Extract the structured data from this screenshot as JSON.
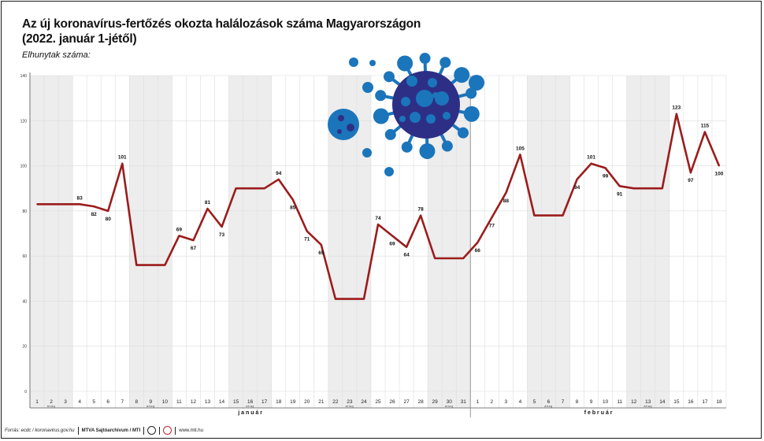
{
  "title": {
    "line1": "Az új koronavírus-fertőzés okozta halálozások száma Magyarországon",
    "line2": "(2022. január 1-jétől)"
  },
  "ylabel": "Elhunytak száma:",
  "footer": {
    "source": "Forrás: ecdc / koronavirus.gov.hu",
    "agency": "MTVA Sajtóarchívum / MTI",
    "site": "www.mti.hu"
  },
  "colors": {
    "line": "#9b1c1c",
    "band": "#ededed",
    "grid": "#dddddd",
    "virus_dark": "#2d2f86",
    "virus_light": "#1b75bb"
  },
  "chart_data": {
    "type": "line",
    "title": "Az új koronavírus-fertőzés okozta halálozások száma Magyarországon",
    "subtitle": "(2022. január 1-jétől)",
    "ylabel": "Elhunytak száma:",
    "ylim": [
      0,
      140
    ],
    "yticks": [
      0,
      20,
      40,
      60,
      80,
      100,
      120,
      140
    ],
    "grid": true,
    "months": [
      {
        "label": "j a n u á r",
        "start": 0,
        "end": 30
      },
      {
        "label": "f e b r u á r",
        "start": 31,
        "end": 48
      }
    ],
    "x": [
      "1",
      "2",
      "3",
      "4",
      "5",
      "6",
      "7",
      "8",
      "9",
      "10",
      "11",
      "12",
      "13",
      "14",
      "15",
      "16",
      "17",
      "18",
      "19",
      "20",
      "21",
      "22",
      "23",
      "24",
      "25",
      "26",
      "27",
      "28",
      "29",
      "30",
      "31",
      "1",
      "2",
      "3",
      "4",
      "5",
      "6",
      "7",
      "8",
      "9",
      "10",
      "11",
      "12",
      "13",
      "14",
      "15",
      "16",
      "17",
      "18"
    ],
    "values": [
      83,
      83,
      83,
      83,
      82,
      80,
      101,
      56,
      56,
      56,
      69,
      67,
      81,
      73,
      90,
      90,
      90,
      94,
      85,
      71,
      65,
      41,
      41,
      41,
      74,
      69,
      64,
      78,
      59,
      59,
      59,
      66,
      77,
      88,
      105,
      78,
      78,
      78,
      94,
      101,
      99,
      91,
      90,
      90,
      90,
      123,
      97,
      115,
      100
    ],
    "data_labels": [
      {
        "i": 3,
        "text": "83"
      },
      {
        "i": 4,
        "text": "82"
      },
      {
        "i": 5,
        "text": "80"
      },
      {
        "i": 6,
        "text": "101"
      },
      {
        "i": 10,
        "text": "69"
      },
      {
        "i": 11,
        "text": "67"
      },
      {
        "i": 12,
        "text": "81"
      },
      {
        "i": 13,
        "text": "73"
      },
      {
        "i": 17,
        "text": "94"
      },
      {
        "i": 18,
        "text": "85"
      },
      {
        "i": 19,
        "text": "71"
      },
      {
        "i": 20,
        "text": "65"
      },
      {
        "i": 24,
        "text": "74"
      },
      {
        "i": 25,
        "text": "69"
      },
      {
        "i": 26,
        "text": "64"
      },
      {
        "i": 27,
        "text": "78"
      },
      {
        "i": 31,
        "text": "66"
      },
      {
        "i": 32,
        "text": "77"
      },
      {
        "i": 33,
        "text": "88"
      },
      {
        "i": 34,
        "text": "105"
      },
      {
        "i": 38,
        "text": "94"
      },
      {
        "i": 39,
        "text": "101"
      },
      {
        "i": 40,
        "text": "99"
      },
      {
        "i": 41,
        "text": "91"
      },
      {
        "i": 45,
        "text": "123"
      },
      {
        "i": 46,
        "text": "97"
      },
      {
        "i": 47,
        "text": "115"
      },
      {
        "i": 48,
        "text": "100"
      }
    ],
    "average_groups": [
      {
        "start": 0,
        "end": 2,
        "label": "átlag"
      },
      {
        "start": 7,
        "end": 9,
        "label": "átlag"
      },
      {
        "start": 14,
        "end": 16,
        "label": "átlag"
      },
      {
        "start": 21,
        "end": 23,
        "label": "átlag"
      },
      {
        "start": 28,
        "end": 30,
        "label": "átlag"
      },
      {
        "start": 35,
        "end": 37,
        "label": "átlag"
      },
      {
        "start": 42,
        "end": 44,
        "label": "átlag"
      }
    ]
  }
}
